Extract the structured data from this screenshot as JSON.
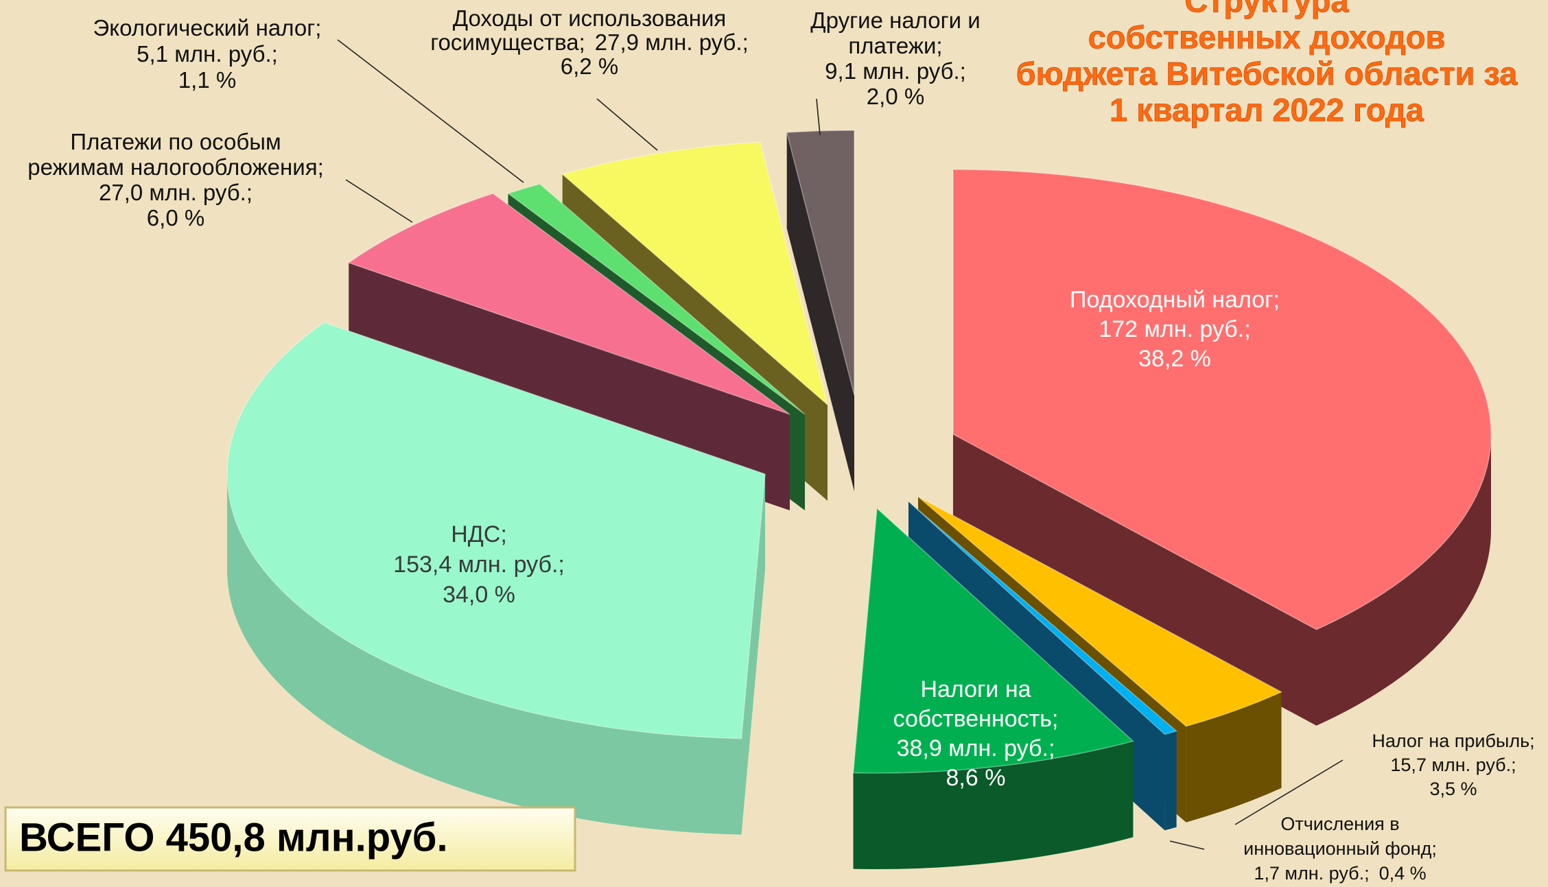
{
  "chart_data": {
    "type": "pie3d",
    "title": [
      "Структура",
      "собственных доходов",
      "бюджета Витебской области за",
      "1 квартал 2022 года"
    ],
    "categories": [
      [
        "Подоходный налог;"
      ],
      [
        "Налог на прибыль;"
      ],
      [
        "Отчисления в",
        "инновационный фонд;"
      ],
      [
        "Налоги на",
        "собственность;"
      ],
      [
        "НДС;"
      ],
      [
        "Платежи по особым",
        "режимам налогообложения;"
      ],
      [
        "Экологический налог;"
      ],
      [
        "Доходы от использования",
        "госимущества;"
      ],
      [
        "Другие налоги и",
        "платежи;"
      ]
    ],
    "values": [
      38.2,
      3.5,
      0.4,
      8.6,
      34.0,
      6.0,
      1.1,
      6.2,
      2.0
    ],
    "value_labels": [
      "38,2 %",
      "3,5 %",
      "0,4 %",
      "8,6 %",
      "34,0 %",
      "6,0 %",
      "1,1 %",
      "6,2 %",
      "2,0 %"
    ],
    "amount_labels": [
      "172 млн. руб.;",
      "15,7 млн. руб.;",
      "1,7 млн. руб.;",
      "38,9 млн. руб.;",
      "153,4 млн. руб.;",
      "27,0 млн. руб.;",
      "5,1 млн. руб.;",
      "27,9 млн. руб.;",
      "9,1 млн. руб.;"
    ],
    "colors": [
      "#ff6f6f",
      "#ffc000",
      "#00b0f0",
      "#00b050",
      "#99f8cc",
      "#f77090",
      "#5ee070",
      "#f8f860",
      "#706262"
    ],
    "side_colors": [
      "#6b2a2e",
      "#6a5000",
      "#0a4a6a",
      "#0a5a2a",
      "#7cc8a2",
      "#5e2a3a",
      "#1f5a2a",
      "#6a6020",
      "#2e2828"
    ],
    "total": {
      "value": 450.8,
      "label": "ВСЕГО  450,8  млн.руб."
    }
  }
}
